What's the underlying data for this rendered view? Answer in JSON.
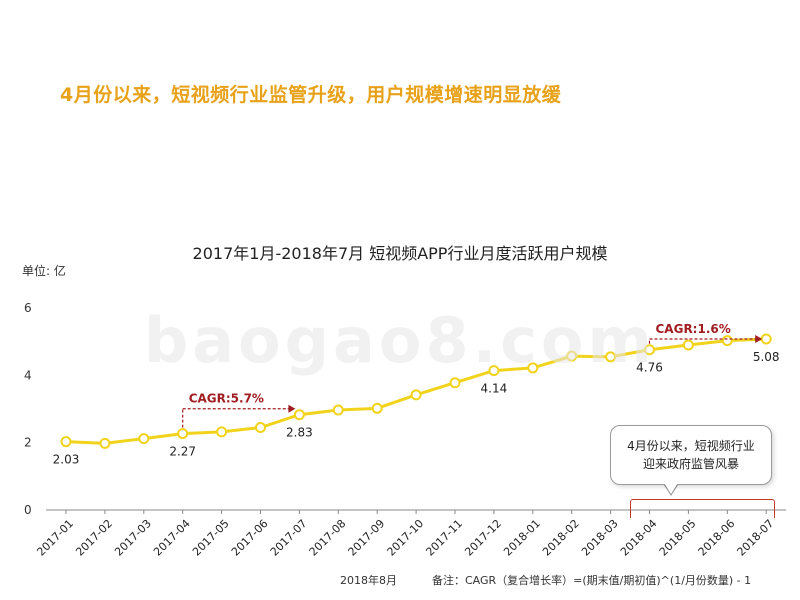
{
  "headline": "4月份以来，短视频行业监管升级，用户规模增速明显放缓",
  "watermark": "baogao8.com",
  "callout": {
    "line1": "4月份以来，短视频行业",
    "line2": "迎来政府监管风暴"
  },
  "footer": {
    "date": "2018年8月",
    "note": "备注：CAGR（复合增长率）=(期末值/期初值)^(1/月份数量) - 1"
  },
  "colors": {
    "headline": "#e8a21a",
    "line": "#f2d31b",
    "annotation": "#a01e22"
  },
  "chart_data": {
    "type": "line",
    "title": "2017年1月-2018年7月 短视频APP行业月度活跃用户规模",
    "unit": "单位: 亿",
    "categories": [
      "2017-01",
      "2017-02",
      "2017-03",
      "2017-04",
      "2017-05",
      "2017-06",
      "2017-07",
      "2017-08",
      "2017-09",
      "2017-10",
      "2017-11",
      "2017-12",
      "2018-01",
      "2018-02",
      "2018-03",
      "2018-04",
      "2018-05",
      "2018-06",
      "2018-07"
    ],
    "values": [
      2.03,
      1.98,
      2.12,
      2.27,
      2.32,
      2.45,
      2.83,
      2.97,
      3.02,
      3.42,
      3.78,
      4.14,
      4.22,
      4.57,
      4.55,
      4.76,
      4.9,
      5.03,
      5.08
    ],
    "data_labels": {
      "0": "2.03",
      "3": "2.27",
      "6": "2.83",
      "11": "4.14",
      "15": "4.76",
      "18": "5.08"
    },
    "ylim": [
      0,
      6
    ],
    "yticks": [
      "0",
      "2",
      "4",
      "6"
    ],
    "grid": false,
    "annotations": [
      {
        "label": "CAGR:5.7%",
        "from": 3,
        "to": 6
      },
      {
        "label": "CAGR:1.6%",
        "from": 15,
        "to": 18
      }
    ]
  }
}
